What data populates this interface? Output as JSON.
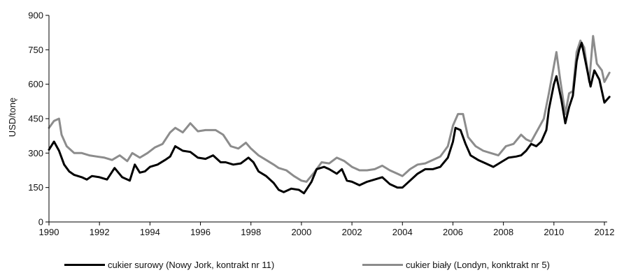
{
  "chart_data": {
    "type": "line",
    "ylabel": "USD/tonę",
    "xlabel": "",
    "xlim": [
      1990,
      2012.2
    ],
    "ylim": [
      0,
      900
    ],
    "x_ticks": [
      "1990",
      "1992",
      "1994",
      "1996",
      "1998",
      "2000",
      "2002",
      "2004",
      "2006",
      "2008",
      "2010",
      "2012"
    ],
    "y_ticks": [
      "0",
      "150",
      "300",
      "450",
      "600",
      "750",
      "900"
    ],
    "grid": false,
    "legend_position": "bottom",
    "series": [
      {
        "name": "cukier surowy (Nowy Jork, kontrakt nr 11)",
        "color": "#000000",
        "points": [
          [
            1990.0,
            315
          ],
          [
            1990.2,
            350
          ],
          [
            1990.4,
            310
          ],
          [
            1990.6,
            250
          ],
          [
            1990.8,
            220
          ],
          [
            1991.0,
            205
          ],
          [
            1991.3,
            195
          ],
          [
            1991.5,
            185
          ],
          [
            1991.7,
            200
          ],
          [
            1992.0,
            195
          ],
          [
            1992.3,
            185
          ],
          [
            1992.6,
            235
          ],
          [
            1992.9,
            195
          ],
          [
            1993.2,
            180
          ],
          [
            1993.4,
            250
          ],
          [
            1993.6,
            215
          ],
          [
            1993.8,
            220
          ],
          [
            1994.0,
            240
          ],
          [
            1994.3,
            250
          ],
          [
            1994.6,
            270
          ],
          [
            1994.8,
            285
          ],
          [
            1995.0,
            330
          ],
          [
            1995.3,
            310
          ],
          [
            1995.6,
            305
          ],
          [
            1995.9,
            280
          ],
          [
            1996.2,
            275
          ],
          [
            1996.5,
            290
          ],
          [
            1996.8,
            260
          ],
          [
            1997.0,
            260
          ],
          [
            1997.3,
            250
          ],
          [
            1997.6,
            255
          ],
          [
            1997.9,
            280
          ],
          [
            1998.1,
            260
          ],
          [
            1998.3,
            220
          ],
          [
            1998.6,
            200
          ],
          [
            1998.9,
            170
          ],
          [
            1999.1,
            140
          ],
          [
            1999.3,
            130
          ],
          [
            1999.6,
            145
          ],
          [
            1999.9,
            140
          ],
          [
            2000.1,
            125
          ],
          [
            2000.4,
            175
          ],
          [
            2000.6,
            230
          ],
          [
            2000.9,
            240
          ],
          [
            2001.1,
            230
          ],
          [
            2001.4,
            210
          ],
          [
            2001.6,
            230
          ],
          [
            2001.8,
            180
          ],
          [
            2002.0,
            175
          ],
          [
            2002.3,
            160
          ],
          [
            2002.6,
            175
          ],
          [
            2002.9,
            185
          ],
          [
            2003.2,
            195
          ],
          [
            2003.5,
            165
          ],
          [
            2003.8,
            150
          ],
          [
            2004.0,
            150
          ],
          [
            2004.3,
            180
          ],
          [
            2004.6,
            210
          ],
          [
            2004.9,
            230
          ],
          [
            2005.2,
            230
          ],
          [
            2005.5,
            240
          ],
          [
            2005.8,
            280
          ],
          [
            2006.0,
            350
          ],
          [
            2006.1,
            410
          ],
          [
            2006.3,
            400
          ],
          [
            2006.5,
            340
          ],
          [
            2006.7,
            290
          ],
          [
            2007.0,
            270
          ],
          [
            2007.3,
            255
          ],
          [
            2007.6,
            240
          ],
          [
            2007.9,
            260
          ],
          [
            2008.2,
            280
          ],
          [
            2008.5,
            285
          ],
          [
            2008.7,
            290
          ],
          [
            2008.9,
            310
          ],
          [
            2009.1,
            340
          ],
          [
            2009.3,
            330
          ],
          [
            2009.5,
            350
          ],
          [
            2009.7,
            400
          ],
          [
            2009.8,
            490
          ],
          [
            2010.0,
            600
          ],
          [
            2010.1,
            635
          ],
          [
            2010.3,
            530
          ],
          [
            2010.45,
            430
          ],
          [
            2010.6,
            500
          ],
          [
            2010.75,
            550
          ],
          [
            2010.9,
            700
          ],
          [
            2011.0,
            750
          ],
          [
            2011.1,
            780
          ],
          [
            2011.25,
            700
          ],
          [
            2011.45,
            590
          ],
          [
            2011.6,
            660
          ],
          [
            2011.8,
            620
          ],
          [
            2012.0,
            520
          ],
          [
            2012.2,
            545
          ]
        ]
      },
      {
        "name": "cukier biały (Londyn, konktrakt nr 5)",
        "color": "#8c8c8c",
        "points": [
          [
            1990.0,
            410
          ],
          [
            1990.2,
            440
          ],
          [
            1990.4,
            450
          ],
          [
            1990.5,
            380
          ],
          [
            1990.7,
            330
          ],
          [
            1991.0,
            300
          ],
          [
            1991.3,
            300
          ],
          [
            1991.6,
            290
          ],
          [
            1991.9,
            285
          ],
          [
            1992.2,
            280
          ],
          [
            1992.5,
            270
          ],
          [
            1992.8,
            290
          ],
          [
            1993.1,
            265
          ],
          [
            1993.3,
            300
          ],
          [
            1993.6,
            280
          ],
          [
            1993.9,
            300
          ],
          [
            1994.2,
            325
          ],
          [
            1994.5,
            340
          ],
          [
            1994.8,
            390
          ],
          [
            1995.0,
            410
          ],
          [
            1995.3,
            390
          ],
          [
            1995.6,
            430
          ],
          [
            1995.9,
            395
          ],
          [
            1996.2,
            400
          ],
          [
            1996.6,
            400
          ],
          [
            1996.9,
            380
          ],
          [
            1997.2,
            330
          ],
          [
            1997.5,
            320
          ],
          [
            1997.8,
            345
          ],
          [
            1998.0,
            320
          ],
          [
            1998.3,
            290
          ],
          [
            1998.6,
            270
          ],
          [
            1998.9,
            250
          ],
          [
            1999.1,
            235
          ],
          [
            1999.4,
            225
          ],
          [
            1999.7,
            200
          ],
          [
            2000.0,
            180
          ],
          [
            2000.2,
            175
          ],
          [
            2000.5,
            215
          ],
          [
            2000.8,
            260
          ],
          [
            2001.1,
            255
          ],
          [
            2001.4,
            280
          ],
          [
            2001.7,
            265
          ],
          [
            2002.0,
            240
          ],
          [
            2002.3,
            225
          ],
          [
            2002.6,
            225
          ],
          [
            2002.9,
            230
          ],
          [
            2003.2,
            245
          ],
          [
            2003.5,
            225
          ],
          [
            2003.8,
            210
          ],
          [
            2004.0,
            200
          ],
          [
            2004.3,
            230
          ],
          [
            2004.6,
            250
          ],
          [
            2004.9,
            255
          ],
          [
            2005.2,
            270
          ],
          [
            2005.5,
            285
          ],
          [
            2005.8,
            330
          ],
          [
            2006.0,
            420
          ],
          [
            2006.2,
            470
          ],
          [
            2006.4,
            470
          ],
          [
            2006.6,
            370
          ],
          [
            2006.9,
            330
          ],
          [
            2007.2,
            310
          ],
          [
            2007.5,
            300
          ],
          [
            2007.8,
            290
          ],
          [
            2008.1,
            330
          ],
          [
            2008.4,
            340
          ],
          [
            2008.7,
            380
          ],
          [
            2008.9,
            360
          ],
          [
            2009.1,
            350
          ],
          [
            2009.4,
            410
          ],
          [
            2009.6,
            450
          ],
          [
            2009.8,
            560
          ],
          [
            2010.0,
            680
          ],
          [
            2010.1,
            740
          ],
          [
            2010.25,
            620
          ],
          [
            2010.45,
            470
          ],
          [
            2010.6,
            560
          ],
          [
            2010.75,
            570
          ],
          [
            2010.9,
            740
          ],
          [
            2011.05,
            790
          ],
          [
            2011.2,
            760
          ],
          [
            2011.4,
            610
          ],
          [
            2011.55,
            810
          ],
          [
            2011.7,
            690
          ],
          [
            2011.9,
            660
          ],
          [
            2012.0,
            610
          ],
          [
            2012.2,
            650
          ]
        ]
      }
    ]
  }
}
